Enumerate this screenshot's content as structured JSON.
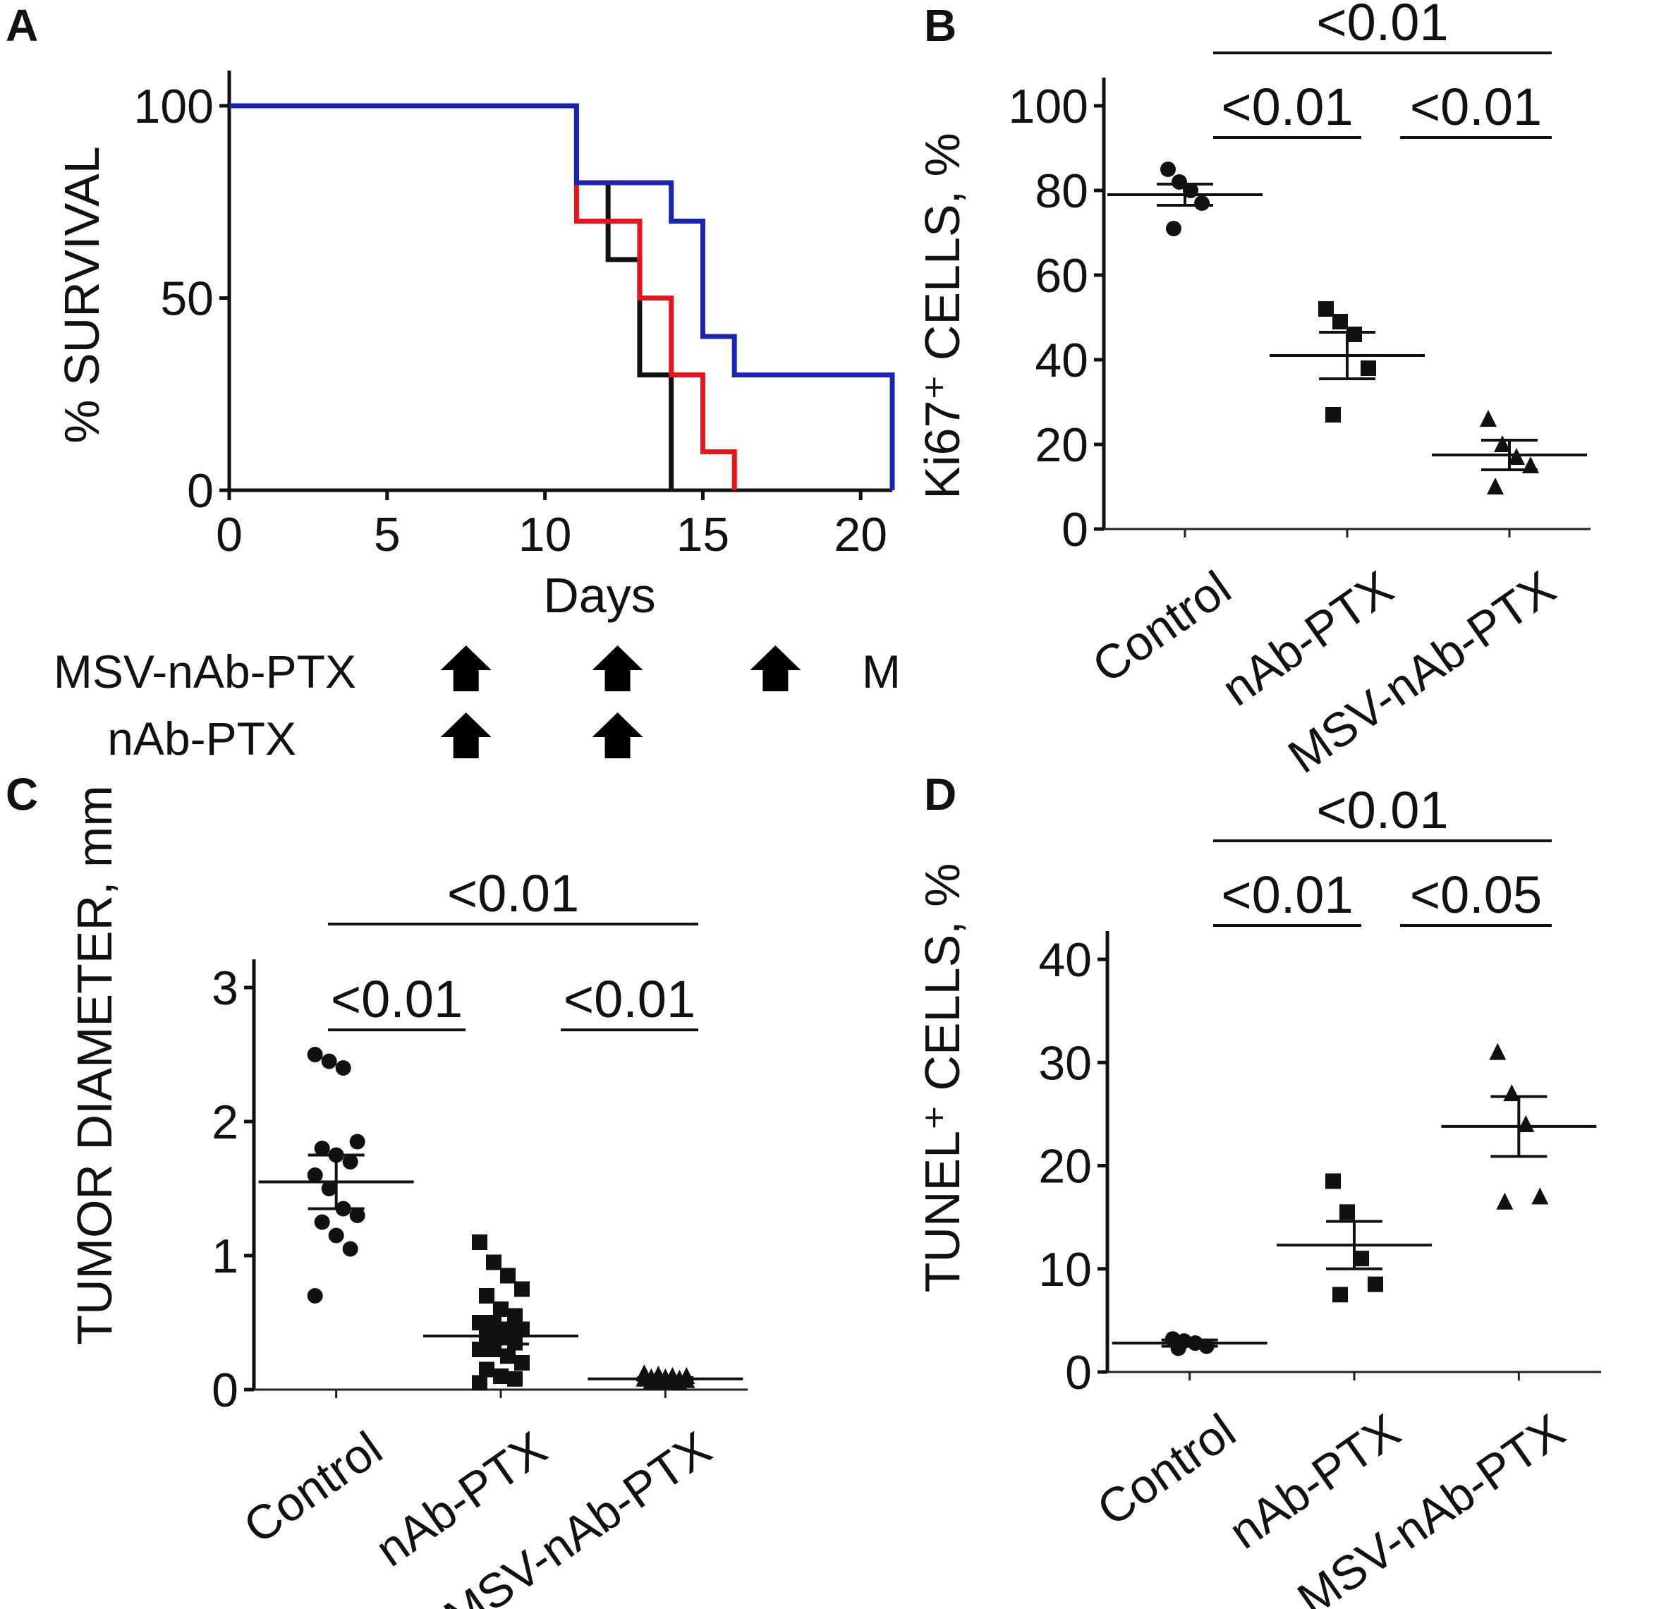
{
  "figure": {
    "panel_letters": {
      "a": "A",
      "b": "B",
      "c": "C",
      "d": "D"
    },
    "treatment_schedule": {
      "rows": [
        {
          "label": "MSV-nAb-PTX",
          "arrow_days": [
            7.5,
            12.3,
            17.3
          ],
          "trailing_mark": "M"
        },
        {
          "label": "nAb-PTX",
          "arrow_days": [
            7.5,
            12.3
          ]
        }
      ]
    }
  },
  "chart_data": [
    {
      "panel": "A",
      "type": "line",
      "subtype": "kaplan-meier",
      "title": "",
      "xlabel": "Days",
      "ylabel": "% SURVIVAL",
      "xlim": [
        0,
        21
      ],
      "ylim": [
        0,
        100
      ],
      "xticks": [
        0,
        5,
        10,
        15,
        20
      ],
      "yticks": [
        0,
        50,
        100
      ],
      "series": [
        {
          "name": "Control",
          "color": "#111111",
          "x": [
            0,
            11,
            11,
            12,
            12,
            13,
            13,
            14,
            14
          ],
          "y": [
            100,
            100,
            80,
            80,
            60,
            60,
            30,
            30,
            0
          ]
        },
        {
          "name": "nAb-PTX",
          "color": "#e8141b",
          "x": [
            0,
            11,
            11,
            12.5,
            12.5,
            13,
            13,
            14,
            14,
            15,
            15,
            16,
            16
          ],
          "y": [
            100,
            100,
            70,
            70,
            70,
            70,
            50,
            50,
            30,
            30,
            10,
            10,
            0
          ]
        },
        {
          "name": "MSV-nAb-PTX",
          "color": "#1a23b8",
          "x": [
            0,
            11,
            11,
            14,
            14,
            15,
            15,
            16,
            16,
            21,
            21
          ],
          "y": [
            100,
            100,
            80,
            80,
            70,
            70,
            40,
            40,
            30,
            30,
            0
          ]
        }
      ]
    },
    {
      "panel": "B",
      "type": "scatter",
      "subtype": "dot-plot-mean-sem",
      "title": "",
      "ylabel": "Ki67⁺ CELLS, %",
      "ylim": [
        0,
        100
      ],
      "yticks": [
        0,
        20,
        40,
        60,
        80,
        100
      ],
      "categories": [
        "Control",
        "nAb-PTX",
        "MSV-nAb-PTX"
      ],
      "groups": [
        {
          "name": "Control",
          "marker": "circle",
          "mean": 79,
          "sem": 2.5,
          "points": [
            85,
            82,
            80,
            77,
            71
          ]
        },
        {
          "name": "nAb-PTX",
          "marker": "square",
          "mean": 41,
          "sem": 5.5,
          "points": [
            52,
            49,
            46,
            38,
            27
          ]
        },
        {
          "name": "MSV-nAb-PTX",
          "marker": "triangle",
          "mean": 17.5,
          "sem": 3.5,
          "points": [
            26,
            20,
            17,
            15,
            10
          ]
        }
      ],
      "comparisons": [
        {
          "groups": [
            "Control",
            "MSV-nAb-PTX"
          ],
          "label": "<0.01"
        },
        {
          "groups": [
            "Control",
            "nAb-PTX"
          ],
          "label": "<0.01"
        },
        {
          "groups": [
            "nAb-PTX",
            "MSV-nAb-PTX"
          ],
          "label": "<0.01"
        }
      ]
    },
    {
      "panel": "C",
      "type": "scatter",
      "subtype": "dot-plot-mean-sem",
      "title": "",
      "ylabel": "TUMOR DIAMETER, mm",
      "ylim": [
        0,
        3
      ],
      "yticks": [
        0,
        1,
        2,
        3
      ],
      "categories": [
        "Control",
        "nAb-PTX",
        "MSV-nAb-PTX"
      ],
      "groups": [
        {
          "name": "Control",
          "marker": "circle",
          "mean": 1.55,
          "sem": 0.2,
          "points": [
            2.5,
            2.45,
            2.4,
            1.85,
            1.8,
            1.75,
            1.7,
            1.6,
            1.5,
            1.35,
            1.3,
            1.25,
            1.15,
            1.05,
            0.7
          ]
        },
        {
          "name": "nAb-PTX",
          "marker": "square",
          "mean": 0.4,
          "sem": 0.06,
          "points": [
            1.1,
            0.95,
            0.85,
            0.75,
            0.7,
            0.6,
            0.55,
            0.5,
            0.5,
            0.45,
            0.45,
            0.4,
            0.4,
            0.35,
            0.3,
            0.3,
            0.25,
            0.2,
            0.15,
            0.1,
            0.08,
            0.05
          ]
        },
        {
          "name": "MSV-nAb-PTX",
          "marker": "triangle",
          "mean": 0.08,
          "sem": 0.01,
          "points": [
            0.12,
            0.11,
            0.1,
            0.1,
            0.09,
            0.09,
            0.08,
            0.08,
            0.08,
            0.07,
            0.07,
            0.06,
            0.06,
            0.05
          ]
        }
      ],
      "comparisons": [
        {
          "groups": [
            "Control",
            "MSV-nAb-PTX"
          ],
          "label": "<0.01"
        },
        {
          "groups": [
            "Control",
            "nAb-PTX"
          ],
          "label": "<0.01"
        },
        {
          "groups": [
            "nAb-PTX",
            "MSV-nAb-PTX"
          ],
          "label": "<0.01"
        }
      ]
    },
    {
      "panel": "D",
      "type": "scatter",
      "subtype": "dot-plot-mean-sem",
      "title": "",
      "ylabel": "TUNEL⁺ CELLS, %",
      "ylim": [
        0,
        40
      ],
      "yticks": [
        0,
        10,
        20,
        30,
        40
      ],
      "categories": [
        "Control",
        "nAb-PTX",
        "MSV-nAb-PTX"
      ],
      "groups": [
        {
          "name": "Control",
          "marker": "circle",
          "mean": 2.8,
          "sem": 0.3,
          "points": [
            3.2,
            3.0,
            2.8,
            2.5,
            2.3
          ]
        },
        {
          "name": "nAb-PTX",
          "marker": "square",
          "mean": 12.3,
          "sem": 2.3,
          "points": [
            18.5,
            15.5,
            11,
            8.5,
            7.5
          ]
        },
        {
          "name": "MSV-nAb-PTX",
          "marker": "triangle",
          "mean": 23.8,
          "sem": 2.9,
          "points": [
            31,
            27,
            24,
            17,
            16.5
          ]
        }
      ],
      "comparisons": [
        {
          "groups": [
            "Control",
            "MSV-nAb-PTX"
          ],
          "label": "<0.01"
        },
        {
          "groups": [
            "Control",
            "nAb-PTX"
          ],
          "label": "<0.01"
        },
        {
          "groups": [
            "nAb-PTX",
            "MSV-nAb-PTX"
          ],
          "label": "<0.05"
        }
      ]
    }
  ]
}
